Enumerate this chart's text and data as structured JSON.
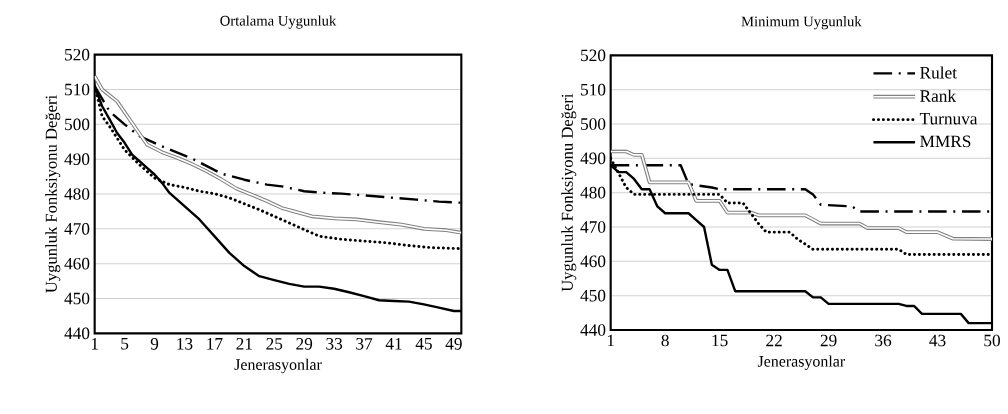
{
  "chart_data": [
    {
      "type": "line",
      "title": "Ortalama Uygunluk",
      "xlabel": "Jenerasyonlar",
      "ylabel": "Uygunluk Fonksiyonu Değeri",
      "xlim": [
        1,
        50
      ],
      "xticks": [
        1,
        5,
        9,
        13,
        17,
        21,
        25,
        29,
        33,
        37,
        41,
        45,
        49
      ],
      "ylim": [
        440,
        520
      ],
      "yticks": [
        440,
        450,
        460,
        470,
        480,
        490,
        500,
        510,
        520
      ],
      "grid": "y",
      "legend": false,
      "series": [
        {
          "color": "#000000",
          "line_style": "dashed",
          "x": [
            1,
            3,
            5,
            7,
            10,
            14,
            16,
            18,
            21,
            24,
            26,
            29,
            32,
            34,
            37,
            41,
            44,
            47,
            50
          ],
          "values": [
            511,
            503.7,
            500,
            496.6,
            493.7,
            490.2,
            488,
            485.8,
            484.1,
            482.7,
            482.2,
            480.8,
            480.3,
            480.1,
            479.6,
            478.9,
            478.4,
            477.8,
            477.5
          ]
        },
        {
          "color": "#808080",
          "line_style": "solid",
          "x": [
            1,
            2,
            4,
            6,
            8,
            10,
            12,
            14,
            16,
            18,
            20,
            22,
            24,
            26,
            28,
            30,
            33,
            36,
            39,
            42,
            45,
            48,
            50
          ],
          "values": [
            513.8,
            510,
            506.6,
            500.4,
            494.2,
            492,
            490.4,
            488.6,
            486.5,
            484.1,
            481.5,
            479.8,
            478,
            476,
            474.8,
            473.6,
            473,
            472.7,
            471.9,
            471.2,
            470,
            469.6,
            468.9
          ]
        },
        {
          "color": "#000000",
          "line_style": "dotted",
          "x": [
            1,
            2,
            3,
            5,
            7,
            9,
            11,
            13,
            15,
            17,
            19,
            21,
            23,
            25,
            27,
            29,
            31,
            34,
            37,
            40,
            43,
            46,
            50
          ],
          "values": [
            511,
            502.3,
            499.4,
            492.7,
            488.4,
            484.6,
            482.7,
            481.9,
            480.8,
            480.1,
            478.9,
            477.2,
            475.5,
            473.6,
            471.7,
            469.8,
            467.9,
            467,
            466.5,
            466,
            465.2,
            464.6,
            464.3
          ]
        },
        {
          "color": "#000000",
          "line_style": "solid",
          "x": [
            1,
            2,
            3,
            4,
            5,
            6,
            7,
            8,
            9,
            10,
            11,
            13,
            15,
            17,
            19,
            21,
            23,
            25,
            27,
            29,
            31,
            33,
            35,
            37,
            39,
            41,
            43,
            45,
            47,
            49,
            50
          ],
          "values": [
            510.9,
            505.2,
            501.4,
            497.5,
            494.7,
            491.3,
            489.4,
            487.5,
            485.6,
            483.2,
            480.3,
            476.5,
            472.7,
            467.9,
            463.1,
            459.3,
            456.4,
            455.3,
            454.2,
            453.4,
            453.4,
            452.8,
            451.8,
            450.7,
            449.5,
            449.3,
            449.1,
            448.3,
            447.4,
            446.4,
            446.4
          ]
        }
      ]
    },
    {
      "type": "line",
      "title": "Minimum Uygunluk",
      "xlabel": "Jenerasyonlar",
      "ylabel": "Uygunluk Fonksiyonu Değeri",
      "xlim": [
        1,
        50
      ],
      "xticks": [
        1,
        8,
        15,
        22,
        29,
        36,
        43,
        50
      ],
      "ylim": [
        440,
        520
      ],
      "yticks": [
        440,
        450,
        460,
        470,
        480,
        490,
        500,
        510,
        520
      ],
      "grid": "y",
      "legend": "top right",
      "series": [
        {
          "name": "Rulet",
          "color": "#000000",
          "line_style": "dashed",
          "x": [
            1,
            10,
            11,
            14,
            15,
            26,
            27,
            28,
            32,
            33,
            50
          ],
          "values": [
            488,
            488,
            482.5,
            481.5,
            481,
            481,
            479.5,
            476.5,
            476,
            474.5,
            474.5
          ]
        },
        {
          "name": "Rank",
          "color": "#808080",
          "line_style": "solid",
          "x": [
            1,
            3,
            4,
            5,
            6,
            11,
            12,
            15,
            16,
            19,
            20,
            26,
            28,
            33,
            34,
            38,
            39,
            43,
            45,
            50
          ],
          "values": [
            492,
            492,
            491,
            491,
            483,
            483,
            477.6,
            477.6,
            474.2,
            474.2,
            473.4,
            473.4,
            471,
            471,
            469.7,
            469.7,
            468.5,
            468.5,
            466.6,
            466.5
          ]
        },
        {
          "name": "Turnuva",
          "color": "#000000",
          "line_style": "dotted",
          "x": [
            1,
            3,
            4,
            15,
            16,
            18,
            19,
            20,
            21,
            24,
            25,
            26,
            27,
            38,
            39,
            50
          ],
          "values": [
            490,
            481.5,
            479.5,
            479.5,
            477,
            477,
            474,
            471,
            468.5,
            468.5,
            466.5,
            465,
            463.5,
            463.5,
            462,
            462
          ]
        },
        {
          "name": "MMRS",
          "color": "#000000",
          "line_style": "solid",
          "x": [
            1,
            2,
            3,
            4,
            5,
            6,
            7,
            8,
            11,
            12,
            13,
            14,
            15,
            16,
            17,
            26,
            27,
            28,
            29,
            38,
            39,
            40,
            41,
            46,
            47,
            50
          ],
          "values": [
            488,
            486,
            486,
            484,
            481,
            481,
            476,
            474,
            474,
            472,
            470,
            459,
            457.5,
            457.5,
            451.3,
            451.3,
            449.5,
            449.5,
            447.6,
            447.6,
            447,
            447,
            444.7,
            444.7,
            442,
            442
          ]
        }
      ]
    }
  ]
}
